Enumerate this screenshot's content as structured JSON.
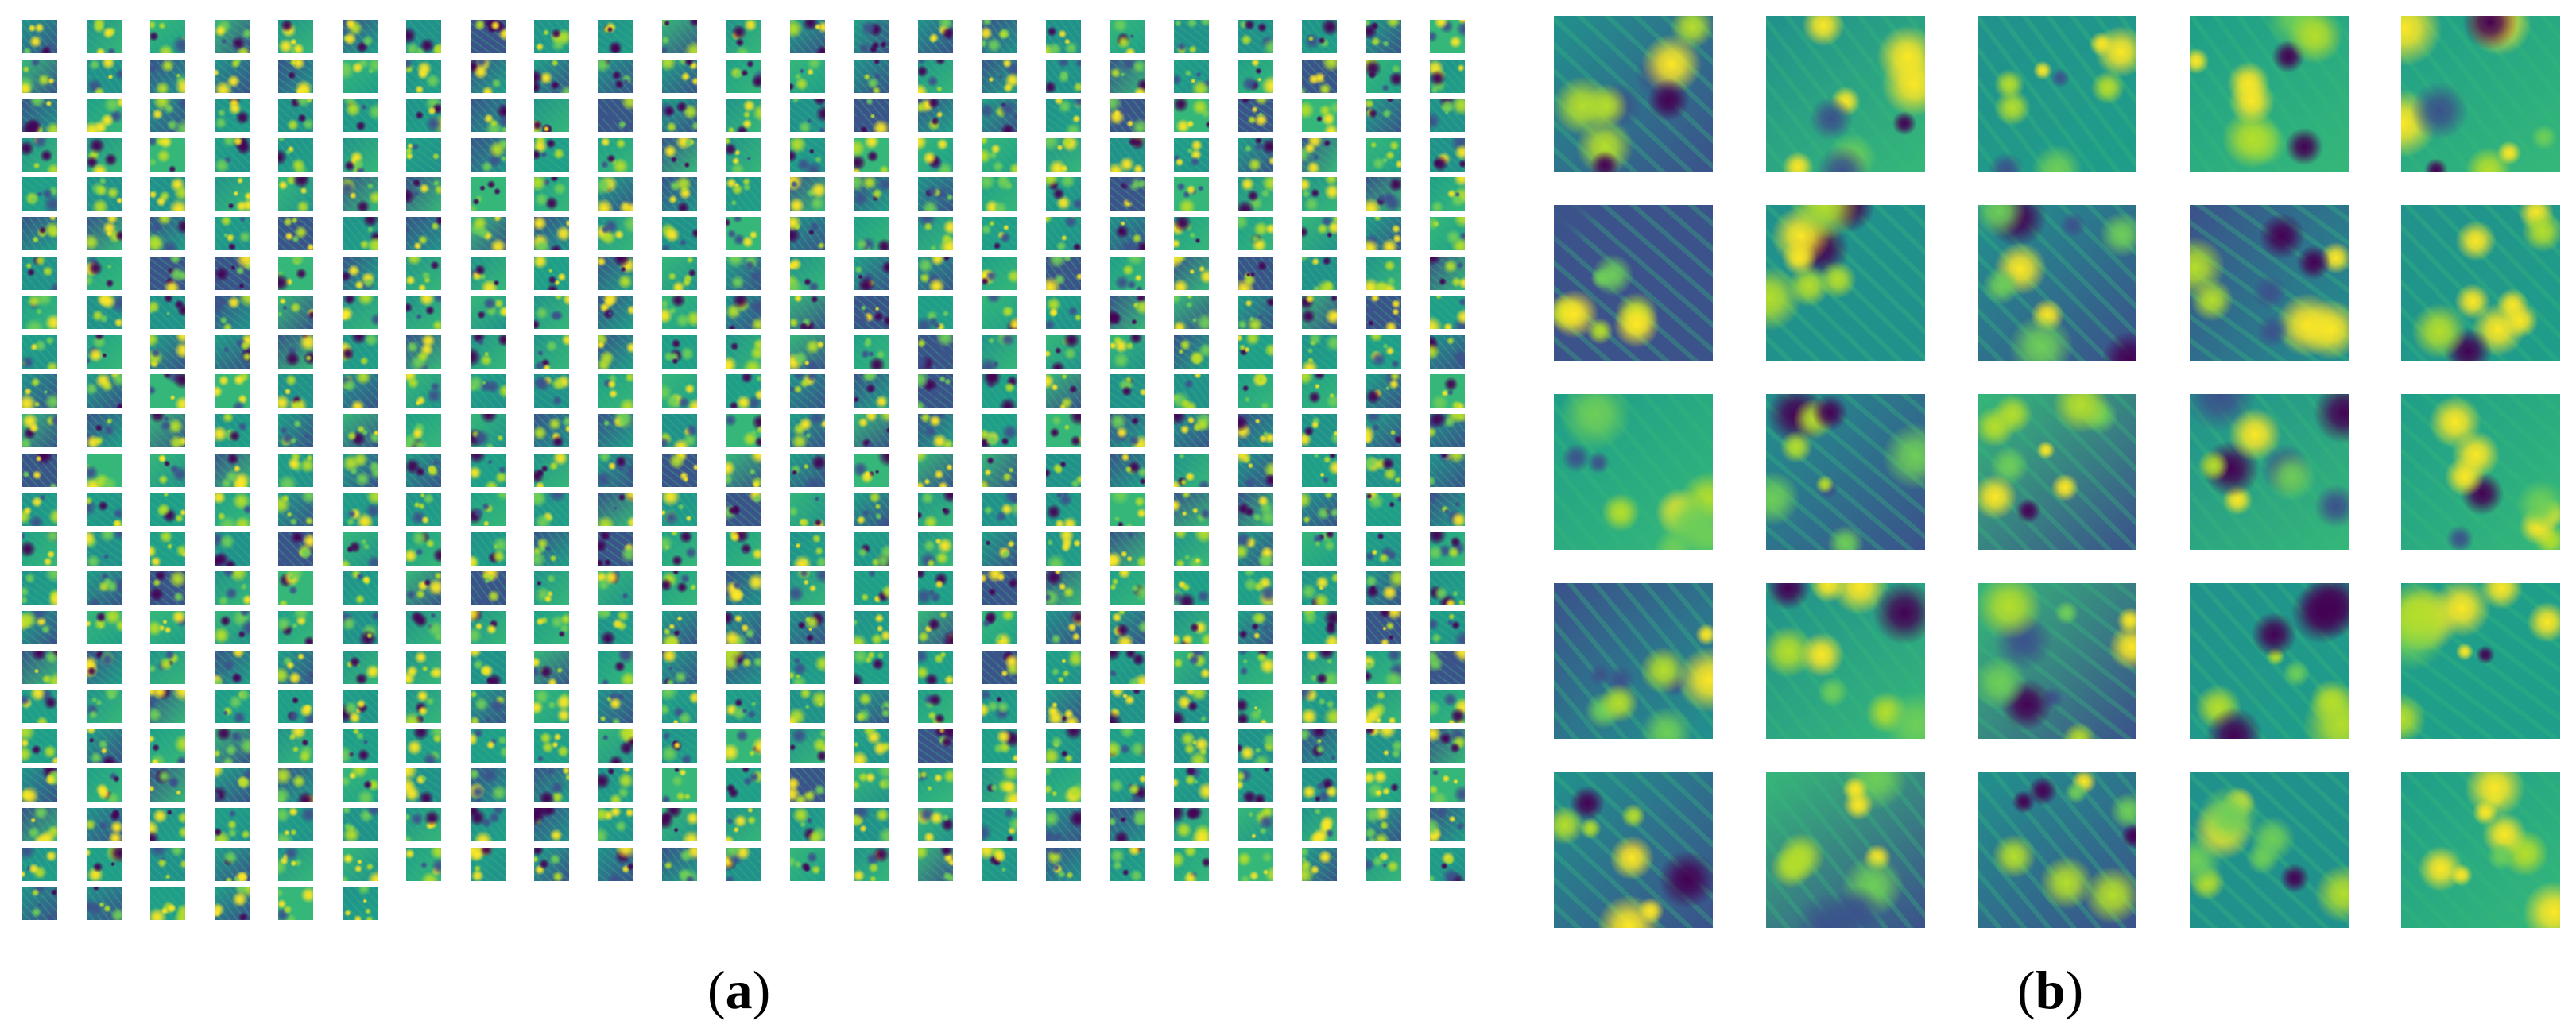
{
  "figure": {
    "panels": [
      {
        "id": "a",
        "label_open": "(",
        "label_letter": "a",
        "label_close": ")",
        "description": "Grid of feature-map activations",
        "grid": {
          "columns": 23,
          "rows": 23,
          "tile_count": 512,
          "last_row_tiles": 6
        }
      },
      {
        "id": "b",
        "label_open": "(",
        "label_letter": "b",
        "label_close": ")",
        "description": "Enlarged feature-map activations",
        "grid": {
          "columns": 5,
          "rows": 5,
          "tile_count": 25
        }
      }
    ],
    "colormap": {
      "name": "viridis",
      "stops": [
        "#440154",
        "#3b528b",
        "#21918c",
        "#1f9e89",
        "#35b779",
        "#6ece58",
        "#b5de2b",
        "#fde725"
      ]
    }
  }
}
